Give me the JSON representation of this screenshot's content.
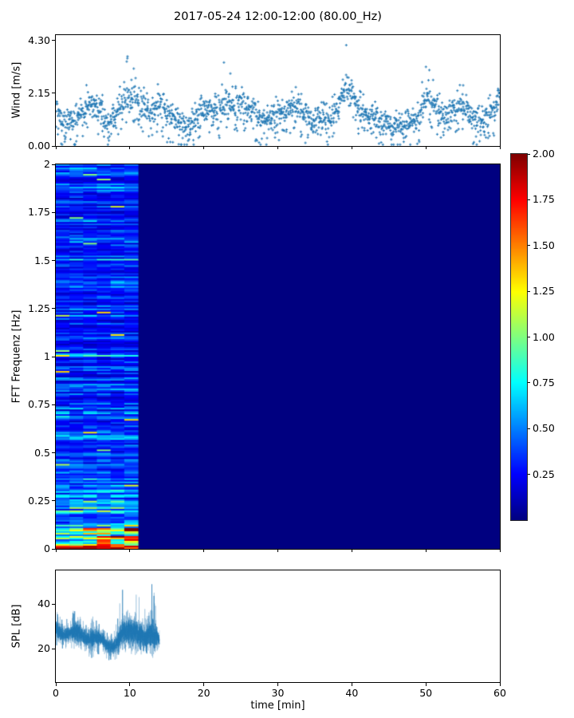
{
  "title": "2017-05-24 12:00-12:00 (80.00_Hz)",
  "xlabel": "time [min]",
  "x_axis": {
    "lim": [
      0,
      60
    ],
    "ticks": [
      {
        "v": 0,
        "label": "0"
      },
      {
        "v": 10,
        "label": "10"
      },
      {
        "v": 20,
        "label": "20"
      },
      {
        "v": 30,
        "label": "30"
      },
      {
        "v": 40,
        "label": "40"
      },
      {
        "v": 50,
        "label": "50"
      },
      {
        "v": 60,
        "label": "60"
      }
    ]
  },
  "accent_color": "#1f77b4",
  "chart_data": [
    {
      "type": "scatter",
      "name": "wind-speed",
      "ylabel": "Wind [m/s]",
      "ylim": [
        0,
        4.52
      ],
      "yticks": [
        {
          "v": 0.0,
          "label": "0.00"
        },
        {
          "v": 2.15,
          "label": "2.15"
        },
        {
          "v": 4.3,
          "label": "4.30"
        }
      ],
      "marker": "plus",
      "marker_color": "#1f77b4",
      "points_per_minute": 29,
      "minute_mean": [
        1.6,
        0.8,
        0.9,
        1.1,
        1.5,
        1.7,
        1.4,
        0.9,
        1.3,
        1.8,
        2.1,
        1.8,
        1.6,
        1.4,
        1.7,
        1.2,
        1.1,
        0.9,
        0.7,
        1.2,
        1.4,
        1.6,
        1.4,
        1.8,
        1.6,
        1.8,
        1.6,
        1.2,
        1.0,
        1.1,
        1.3,
        1.4,
        1.7,
        1.5,
        1.1,
        1.0,
        1.1,
        1.0,
        1.5,
        2.5,
        2.2,
        1.5,
        1.3,
        1.2,
        0.9,
        0.8,
        0.9,
        0.8,
        1.0,
        1.2,
        1.9,
        1.7,
        1.3,
        1.2,
        1.5,
        1.7,
        1.2,
        1.0,
        1.1,
        1.4,
        1.9
      ],
      "minute_peak": [
        2.3,
        1.4,
        1.6,
        2.0,
        2.6,
        2.9,
        2.3,
        1.6,
        2.2,
        2.7,
        4.25,
        2.6,
        2.4,
        2.3,
        2.6,
        1.9,
        1.7,
        1.5,
        1.2,
        2.0,
        2.2,
        2.4,
        2.1,
        3.9,
        2.4,
        2.5,
        2.3,
        1.9,
        1.6,
        1.8,
        2.1,
        2.2,
        2.8,
        2.4,
        1.8,
        1.6,
        1.8,
        1.7,
        2.6,
        4.3,
        4.0,
        2.3,
        2.0,
        1.9,
        1.5,
        1.3,
        1.5,
        1.4,
        1.7,
        2.0,
        3.3,
        2.9,
        2.1,
        1.9,
        2.5,
        3.0,
        1.9,
        1.6,
        1.8,
        2.2,
        2.3
      ]
    },
    {
      "type": "heatmap",
      "name": "fft-spectrogram",
      "ylabel": "FFT Frequenz [Hz]",
      "ylim": [
        0,
        2
      ],
      "yticks": [
        {
          "v": 0,
          "label": "0"
        },
        {
          "v": 0.25,
          "label": "0.25"
        },
        {
          "v": 0.5,
          "label": "0.5"
        },
        {
          "v": 0.75,
          "label": "0.75"
        },
        {
          "v": 1,
          "label": "1"
        },
        {
          "v": 1.25,
          "label": "1.25"
        },
        {
          "v": 1.5,
          "label": "1.5"
        },
        {
          "v": 1.75,
          "label": "1.75"
        },
        {
          "v": 2,
          "label": "2"
        }
      ],
      "colormap": "jet",
      "clim": [
        0,
        2
      ],
      "background_value": 0,
      "data_end_min": 11.1,
      "time_bins": 6,
      "freq_bins": 240,
      "freq_profile": {
        "f": [
          0,
          0.01,
          0.02,
          0.04,
          0.06,
          0.09,
          0.12,
          0.18,
          0.25,
          0.35,
          0.5,
          0.7,
          1.0,
          1.5,
          2.0
        ],
        "v": [
          1.95,
          1.75,
          1.55,
          1.25,
          1.05,
          0.9,
          0.75,
          0.6,
          0.52,
          0.45,
          0.4,
          0.35,
          0.32,
          0.3,
          0.32
        ]
      },
      "colorbar": {
        "lim": [
          0,
          2
        ],
        "ticks": [
          {
            "v": 2.0,
            "label": "2.00"
          },
          {
            "v": 1.75,
            "label": "1.75"
          },
          {
            "v": 1.5,
            "label": "1.50"
          },
          {
            "v": 1.25,
            "label": "1.25"
          },
          {
            "v": 1.0,
            "label": "1.00"
          },
          {
            "v": 0.75,
            "label": "0.75"
          },
          {
            "v": 0.5,
            "label": "0.50"
          },
          {
            "v": 0.25,
            "label": "0.25"
          }
        ]
      }
    },
    {
      "type": "line",
      "name": "spl",
      "ylabel": "SPL [dB]",
      "ylim": [
        5,
        55
      ],
      "yticks": [
        {
          "v": 20,
          "label": "20"
        },
        {
          "v": 40,
          "label": "40"
        }
      ],
      "line_color": "#1f77b4",
      "data_end_min": 14.0,
      "minute_mean": [
        29,
        26,
        27,
        28,
        24,
        25,
        25,
        21,
        21,
        27,
        28,
        27,
        25,
        27,
        24
      ],
      "minute_peak": [
        37,
        33,
        34,
        42,
        32,
        35,
        31,
        27,
        29,
        47,
        44,
        46,
        38,
        50,
        33
      ],
      "minute_min": [
        21,
        19,
        20,
        20,
        17,
        15,
        18,
        15,
        14,
        19,
        20,
        20,
        18,
        17,
        20
      ]
    }
  ]
}
